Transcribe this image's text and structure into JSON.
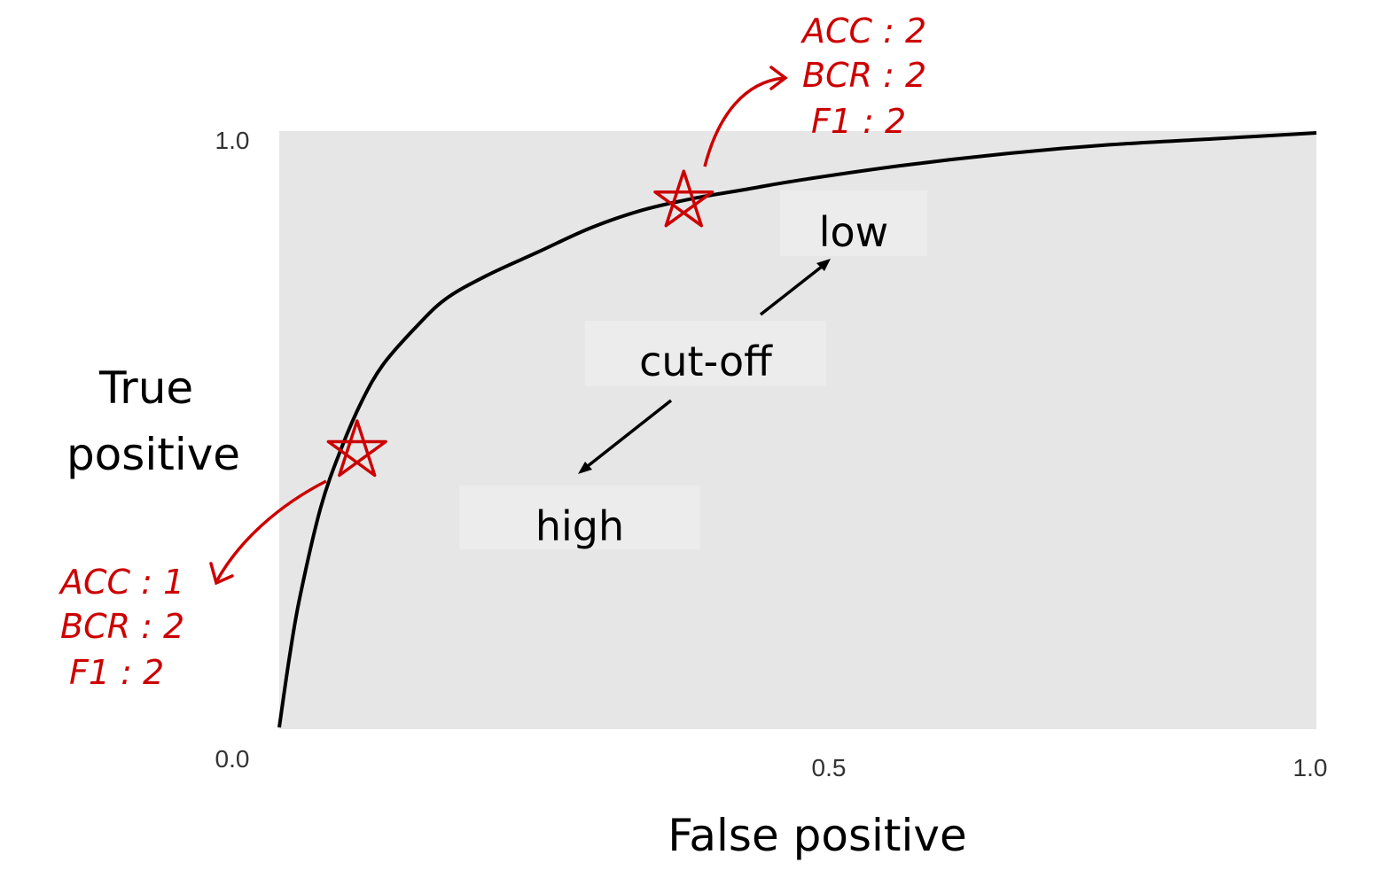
{
  "chart_data": {
    "type": "line",
    "title": "",
    "xlabel": "False positive",
    "ylabel": "True positive",
    "xlim": [
      0.0,
      1.0
    ],
    "ylim": [
      0.0,
      1.0
    ],
    "x_ticks": [
      "0.0",
      "0.5",
      "1.0"
    ],
    "y_ticks": [
      "0.0",
      "1.0"
    ],
    "grid": false,
    "series": [
      {
        "x": [
          0.0,
          0.01,
          0.02,
          0.04,
          0.06,
          0.08,
          0.1,
          0.13,
          0.16,
          0.2,
          0.25,
          0.3,
          0.35,
          0.4,
          0.45,
          0.5,
          0.6,
          0.7,
          0.8,
          0.9,
          1.0
        ],
        "y": [
          0.0,
          0.12,
          0.22,
          0.37,
          0.47,
          0.55,
          0.61,
          0.67,
          0.72,
          0.76,
          0.8,
          0.84,
          0.87,
          0.89,
          0.905,
          0.92,
          0.945,
          0.965,
          0.98,
          0.99,
          1.0
        ]
      }
    ],
    "annotations": {
      "cutoff": "cut-off",
      "low": "low",
      "high": "high"
    },
    "marked_points": [
      {
        "x": 0.39,
        "y": 0.885,
        "labels": [
          "ACC : 2",
          "BCR : 2",
          "F1   : 2"
        ]
      },
      {
        "x": 0.075,
        "y": 0.465,
        "labels": [
          "ACC : 1",
          "BCR : 2",
          "F1   : 2"
        ]
      }
    ],
    "colors": {
      "plot_background": "#e6e6e6",
      "curve": "#000000",
      "highlight": "#cc0000",
      "label_box": "#ececec"
    }
  }
}
